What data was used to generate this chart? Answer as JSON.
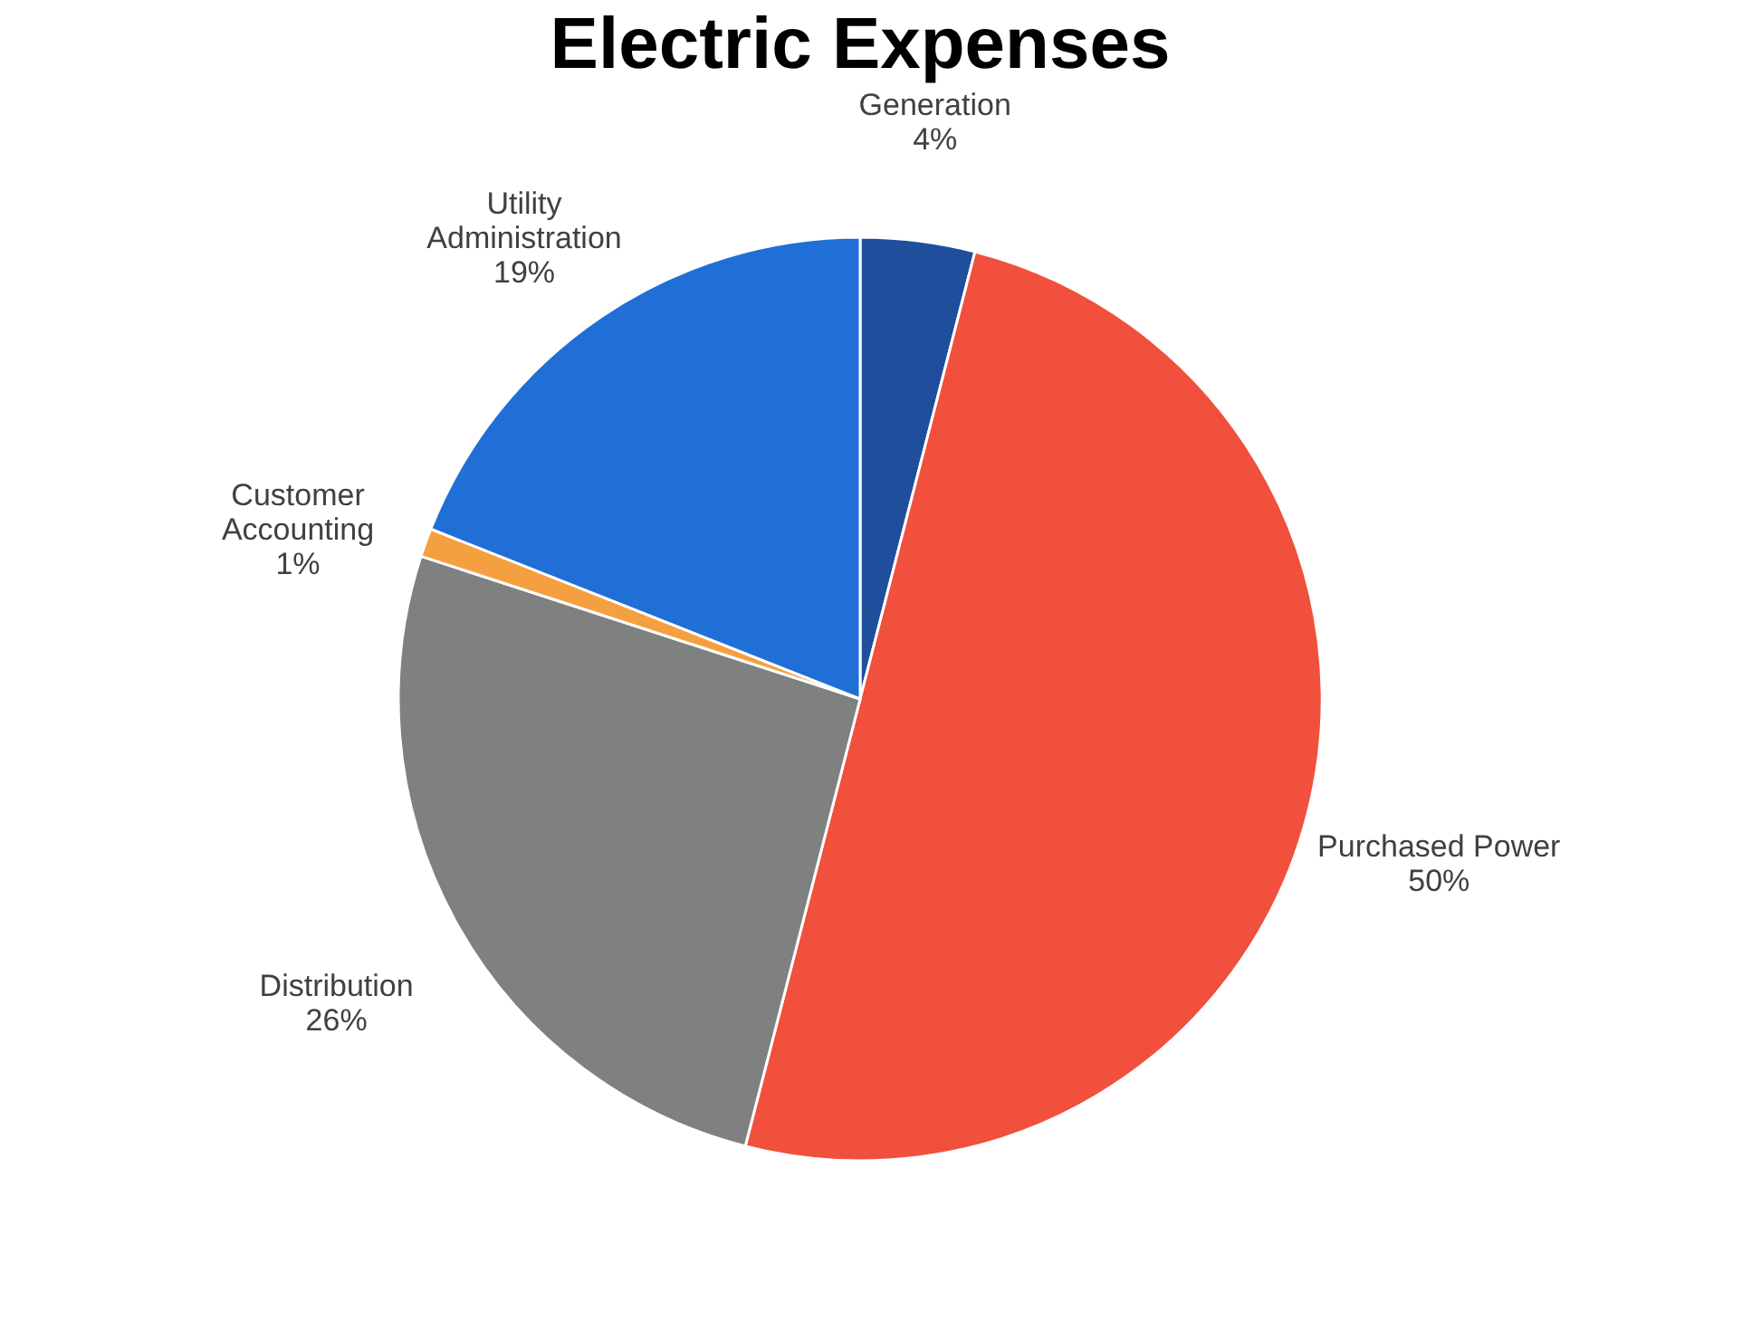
{
  "chart_data": {
    "type": "pie",
    "title": "Electric Expenses",
    "categories": [
      "Generation",
      "Purchased Power",
      "Distribution",
      "Customer Accounting",
      "Utility Administration"
    ],
    "values": [
      4,
      50,
      26,
      1,
      19
    ],
    "value_labels": [
      "4%",
      "50%",
      "26%",
      "1%",
      "19%"
    ],
    "colors": [
      "#1f4e9c",
      "#f0503c",
      "#7f8080",
      "#f5a040",
      "#1f6fd6"
    ]
  }
}
